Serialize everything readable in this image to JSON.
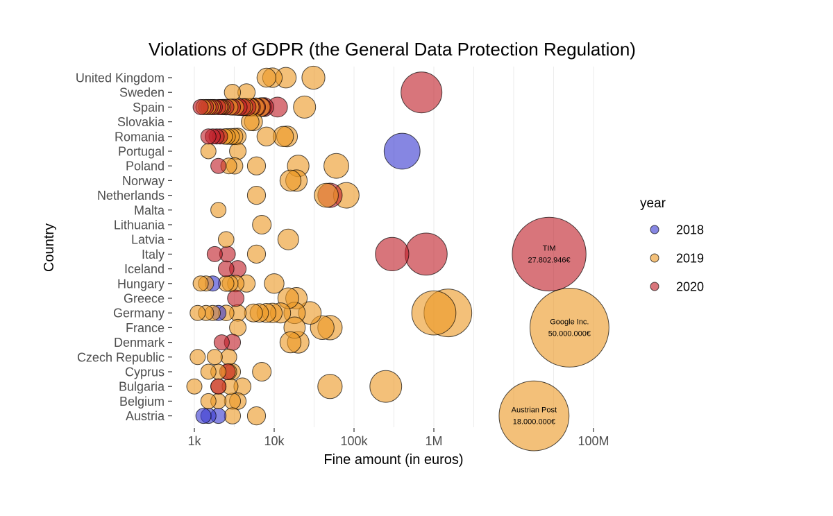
{
  "chart_data": {
    "type": "scatter",
    "title": "Violations of GDPR (the General Data Protection Regulation)",
    "xlabel": "Fine amount (in euros)",
    "ylabel": "Country",
    "x_scale": "log10",
    "xlim": [
      500,
      120000000
    ],
    "x_ticks": [
      {
        "value": 1000,
        "label": "1k"
      },
      {
        "value": 10000,
        "label": "10k"
      },
      {
        "value": 100000,
        "label": "100k"
      },
      {
        "value": 1000000,
        "label": "1M"
      },
      {
        "value": 100000000,
        "label": "100M"
      }
    ],
    "grid_lines": [
      1000,
      3160,
      10000,
      31600,
      100000,
      316000,
      1000000,
      3160000,
      10000000,
      31600000,
      100000000
    ],
    "categories": [
      "United Kingdom",
      "Sweden",
      "Spain",
      "Slovakia",
      "Romania",
      "Portugal",
      "Poland",
      "Norway",
      "Netherlands",
      "Malta",
      "Lithuania",
      "Latvia",
      "Italy",
      "Iceland",
      "Hungary",
      "Greece",
      "Germany",
      "France",
      "Denmark",
      "Czech Republic",
      "Cyprus",
      "Bulgaria",
      "Belgium",
      "Austria"
    ],
    "legend": {
      "title": "year",
      "position": "right",
      "items": [
        {
          "label": "2018",
          "color": "#3b3bd1"
        },
        {
          "label": "2019",
          "color": "#eb9a26"
        },
        {
          "label": "2020",
          "color": "#c0202a"
        }
      ]
    },
    "series": [
      {
        "name": "2018",
        "color": "#3b3bd1",
        "points": [
          {
            "country": "Portugal",
            "x": 400000
          },
          {
            "country": "Hungary",
            "x": 1700
          },
          {
            "country": "Germany",
            "x": 2000
          },
          {
            "country": "Austria",
            "x": 1300
          },
          {
            "country": "Austria",
            "x": 1500
          },
          {
            "country": "Austria",
            "x": 2000
          }
        ]
      },
      {
        "name": "2019",
        "color": "#eb9a26",
        "points": [
          {
            "country": "United Kingdom",
            "x": 8000
          },
          {
            "country": "United Kingdom",
            "x": 9500
          },
          {
            "country": "United Kingdom",
            "x": 14000
          },
          {
            "country": "United Kingdom",
            "x": 31000
          },
          {
            "country": "Sweden",
            "x": 3000
          },
          {
            "country": "Sweden",
            "x": 4500
          },
          {
            "country": "Spain",
            "x": 1300
          },
          {
            "country": "Spain",
            "x": 1500
          },
          {
            "country": "Spain",
            "x": 1700
          },
          {
            "country": "Spain",
            "x": 2100
          },
          {
            "country": "Spain",
            "x": 2300
          },
          {
            "country": "Spain",
            "x": 2800
          },
          {
            "country": "Spain",
            "x": 3300
          },
          {
            "country": "Spain",
            "x": 4200
          },
          {
            "country": "Spain",
            "x": 5000
          },
          {
            "country": "Spain",
            "x": 5800
          },
          {
            "country": "Spain",
            "x": 6800
          },
          {
            "country": "Spain",
            "x": 24000
          },
          {
            "country": "Slovakia",
            "x": 5000
          },
          {
            "country": "Slovakia",
            "x": 5500
          },
          {
            "country": "Romania",
            "x": 2400
          },
          {
            "country": "Romania",
            "x": 2600
          },
          {
            "country": "Romania",
            "x": 2900
          },
          {
            "country": "Romania",
            "x": 3200
          },
          {
            "country": "Romania",
            "x": 3500
          },
          {
            "country": "Romania",
            "x": 8000
          },
          {
            "country": "Romania",
            "x": 13000
          },
          {
            "country": "Romania",
            "x": 14500
          },
          {
            "country": "Portugal",
            "x": 1500
          },
          {
            "country": "Portugal",
            "x": 3500
          },
          {
            "country": "Poland",
            "x": 2700
          },
          {
            "country": "Poland",
            "x": 3200
          },
          {
            "country": "Poland",
            "x": 6000
          },
          {
            "country": "Poland",
            "x": 20000
          },
          {
            "country": "Poland",
            "x": 60000
          },
          {
            "country": "Norway",
            "x": 16000
          },
          {
            "country": "Norway",
            "x": 19000
          },
          {
            "country": "Netherlands",
            "x": 6000
          },
          {
            "country": "Netherlands",
            "x": 45000
          },
          {
            "country": "Netherlands",
            "x": 80000
          },
          {
            "country": "Malta",
            "x": 2000
          },
          {
            "country": "Lithuania",
            "x": 7000
          },
          {
            "country": "Latvia",
            "x": 2500
          },
          {
            "country": "Latvia",
            "x": 15000
          },
          {
            "country": "Italy",
            "x": 6000
          },
          {
            "country": "Hungary",
            "x": 1200
          },
          {
            "country": "Hungary",
            "x": 1400
          },
          {
            "country": "Hungary",
            "x": 2500
          },
          {
            "country": "Hungary",
            "x": 2800
          },
          {
            "country": "Hungary",
            "x": 3300
          },
          {
            "country": "Hungary",
            "x": 4500
          },
          {
            "country": "Hungary",
            "x": 10000
          },
          {
            "country": "Greece",
            "x": 15000
          },
          {
            "country": "Greece",
            "x": 19000
          },
          {
            "country": "Germany",
            "x": 1100
          },
          {
            "country": "Germany",
            "x": 1400
          },
          {
            "country": "Germany",
            "x": 1700
          },
          {
            "country": "Germany",
            "x": 2500
          },
          {
            "country": "Germany",
            "x": 3500
          },
          {
            "country": "Germany",
            "x": 5500
          },
          {
            "country": "Germany",
            "x": 6500
          },
          {
            "country": "Germany",
            "x": 8000
          },
          {
            "country": "Germany",
            "x": 9500
          },
          {
            "country": "Germany",
            "x": 12000
          },
          {
            "country": "Germany",
            "x": 18000
          },
          {
            "country": "Germany",
            "x": 28000
          },
          {
            "country": "Germany",
            "x": 1000000
          },
          {
            "country": "Germany",
            "x": 1500000
          },
          {
            "country": "France",
            "x": 3500
          },
          {
            "country": "France",
            "x": 18000
          },
          {
            "country": "France",
            "x": 40000
          },
          {
            "country": "France",
            "x": 50000
          },
          {
            "country": "France",
            "x": 50000000,
            "annotation": [
              "Google Inc.",
              "50.000.000€"
            ]
          },
          {
            "country": "Denmark",
            "x": 16000
          },
          {
            "country": "Denmark",
            "x": 20000
          },
          {
            "country": "Czech Republic",
            "x": 1100
          },
          {
            "country": "Czech Republic",
            "x": 1800
          },
          {
            "country": "Czech Republic",
            "x": 2700
          },
          {
            "country": "Cyprus",
            "x": 1500
          },
          {
            "country": "Cyprus",
            "x": 2000
          },
          {
            "country": "Cyprus",
            "x": 2700
          },
          {
            "country": "Cyprus",
            "x": 3000
          },
          {
            "country": "Cyprus",
            "x": 7000
          },
          {
            "country": "Bulgaria",
            "x": 1000
          },
          {
            "country": "Bulgaria",
            "x": 2000
          },
          {
            "country": "Bulgaria",
            "x": 2800
          },
          {
            "country": "Bulgaria",
            "x": 4000
          },
          {
            "country": "Bulgaria",
            "x": 50000
          },
          {
            "country": "Bulgaria",
            "x": 250000
          },
          {
            "country": "Belgium",
            "x": 1500
          },
          {
            "country": "Belgium",
            "x": 2000
          },
          {
            "country": "Belgium",
            "x": 3000
          },
          {
            "country": "Belgium",
            "x": 3500
          },
          {
            "country": "Austria",
            "x": 3000
          },
          {
            "country": "Austria",
            "x": 6000
          },
          {
            "country": "Austria",
            "x": 18000000,
            "annotation": [
              "Austrian Post",
              "18.000.000€"
            ]
          }
        ]
      },
      {
        "name": "2020",
        "color": "#c0202a",
        "points": [
          {
            "country": "Sweden",
            "x": 700000
          },
          {
            "country": "Spain",
            "x": 1200
          },
          {
            "country": "Spain",
            "x": 1400
          },
          {
            "country": "Spain",
            "x": 1600
          },
          {
            "country": "Spain",
            "x": 1800
          },
          {
            "country": "Spain",
            "x": 2000
          },
          {
            "country": "Spain",
            "x": 2200
          },
          {
            "country": "Spain",
            "x": 2500
          },
          {
            "country": "Spain",
            "x": 3000
          },
          {
            "country": "Spain",
            "x": 3600
          },
          {
            "country": "Spain",
            "x": 4000
          },
          {
            "country": "Spain",
            "x": 4600
          },
          {
            "country": "Spain",
            "x": 5200
          },
          {
            "country": "Spain",
            "x": 6000
          },
          {
            "country": "Spain",
            "x": 7000
          },
          {
            "country": "Spain",
            "x": 7500
          },
          {
            "country": "Spain",
            "x": 11000
          },
          {
            "country": "Romania",
            "x": 1500
          },
          {
            "country": "Romania",
            "x": 1700
          },
          {
            "country": "Romania",
            "x": 1900
          },
          {
            "country": "Romania",
            "x": 2100
          },
          {
            "country": "Poland",
            "x": 2000
          },
          {
            "country": "Netherlands",
            "x": 50000
          },
          {
            "country": "Italy",
            "x": 1800
          },
          {
            "country": "Italy",
            "x": 2600
          },
          {
            "country": "Italy",
            "x": 300000
          },
          {
            "country": "Italy",
            "x": 800000
          },
          {
            "country": "Italy",
            "x": 27802946,
            "annotation": [
              "TIM",
              "27.802.946€"
            ]
          },
          {
            "country": "Iceland",
            "x": 2500
          },
          {
            "country": "Iceland",
            "x": 3500
          },
          {
            "country": "Greece",
            "x": 3300
          },
          {
            "country": "Denmark",
            "x": 2200
          },
          {
            "country": "Denmark",
            "x": 3000
          },
          {
            "country": "Cyprus",
            "x": 2600
          },
          {
            "country": "Bulgaria",
            "x": 2000
          }
        ]
      }
    ]
  }
}
